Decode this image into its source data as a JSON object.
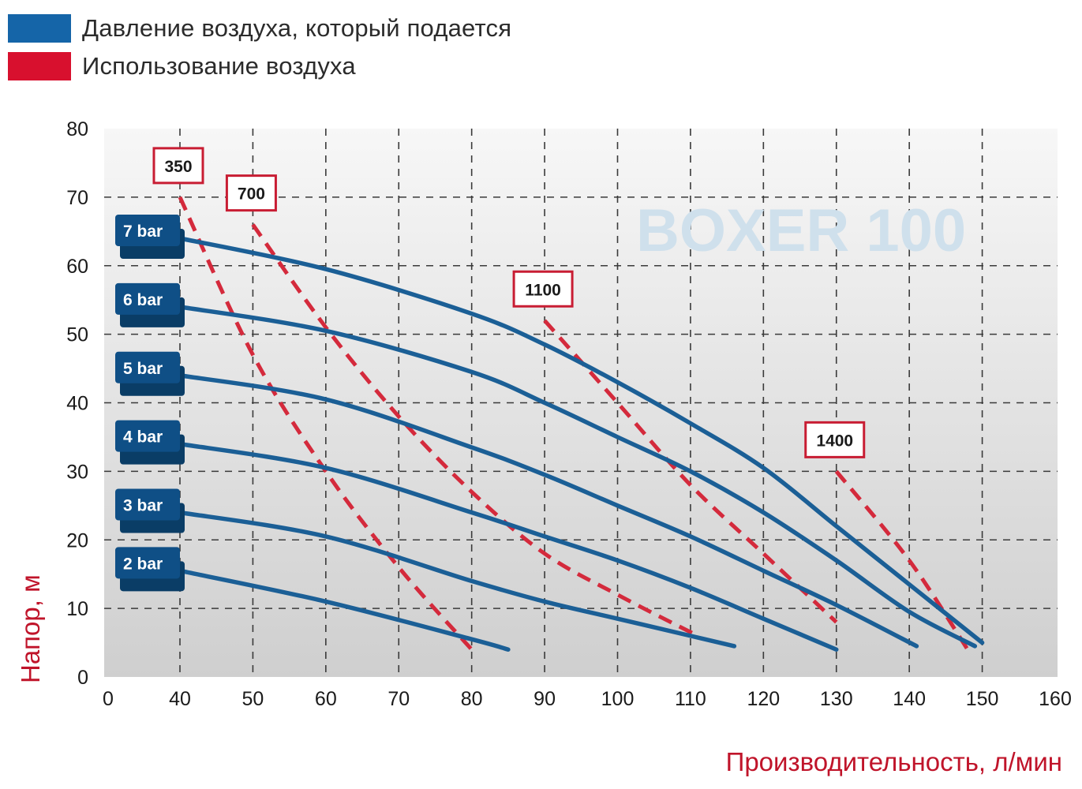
{
  "legend": {
    "items": [
      {
        "label": "Давление воздуха, который подается",
        "color": "#1565a8"
      },
      {
        "label": "Использование воздуха",
        "color": "#d8102e"
      }
    ]
  },
  "watermark": "BOXER 100",
  "colors": {
    "pressure": "#1b5f96",
    "air": "#d42a3c",
    "badge": "#0f4f86"
  },
  "chart_data": {
    "type": "line",
    "xlabel": "Производительность, л/мин",
    "ylabel": "Напор, м",
    "xlim": [
      0,
      160
    ],
    "ylim": [
      0,
      80
    ],
    "xticks": [
      0,
      40,
      50,
      60,
      70,
      80,
      90,
      100,
      110,
      120,
      130,
      140,
      150,
      160
    ],
    "yticks": [
      0,
      10,
      20,
      30,
      40,
      50,
      60,
      70,
      80
    ],
    "grid": true,
    "legend_position": "top-left",
    "series": [
      {
        "name": "7 bar",
        "x": [
          40,
          60,
          80,
          90,
          100,
          110,
          120,
          130,
          140,
          150
        ],
        "y": [
          64,
          59.5,
          53,
          48.5,
          43,
          37,
          30.5,
          22,
          13.5,
          5
        ]
      },
      {
        "name": "6 bar",
        "x": [
          40,
          60,
          80,
          90,
          100,
          110,
          120,
          130,
          140,
          149
        ],
        "y": [
          54,
          50.5,
          44.5,
          40,
          35,
          30,
          24,
          17,
          9.5,
          4.5
        ]
      },
      {
        "name": "5 bar",
        "x": [
          40,
          60,
          80,
          90,
          100,
          110,
          120,
          130,
          141
        ],
        "y": [
          44,
          40.5,
          33.5,
          29.5,
          25,
          20.5,
          15.5,
          10.5,
          4.5
        ]
      },
      {
        "name": "4 bar",
        "x": [
          40,
          60,
          80,
          90,
          100,
          110,
          120,
          130
        ],
        "y": [
          34,
          30.5,
          24,
          20.5,
          17,
          13,
          8.5,
          4
        ]
      },
      {
        "name": "3 bar",
        "x": [
          40,
          60,
          80,
          90,
          100,
          110,
          116
        ],
        "y": [
          24,
          20.5,
          14,
          11,
          8.5,
          6,
          4.5
        ]
      },
      {
        "name": "2 bar",
        "x": [
          40,
          60,
          80,
          85
        ],
        "y": [
          15.5,
          11,
          5.5,
          4
        ]
      }
    ],
    "air_consumption": [
      {
        "label": "350",
        "x": [
          40,
          50,
          60,
          70,
          80
        ],
        "y": [
          70,
          47,
          30,
          16,
          4
        ]
      },
      {
        "label": "700",
        "x": [
          50,
          60,
          70,
          80,
          90,
          100,
          111
        ],
        "y": [
          66,
          51,
          38,
          27,
          18,
          12,
          6
        ]
      },
      {
        "label": "1100",
        "x": [
          90,
          100,
          110,
          120,
          130
        ],
        "y": [
          52,
          40,
          28,
          18,
          8
        ]
      },
      {
        "label": "1400",
        "x": [
          130,
          140,
          148
        ],
        "y": [
          30,
          17,
          4
        ]
      }
    ]
  }
}
